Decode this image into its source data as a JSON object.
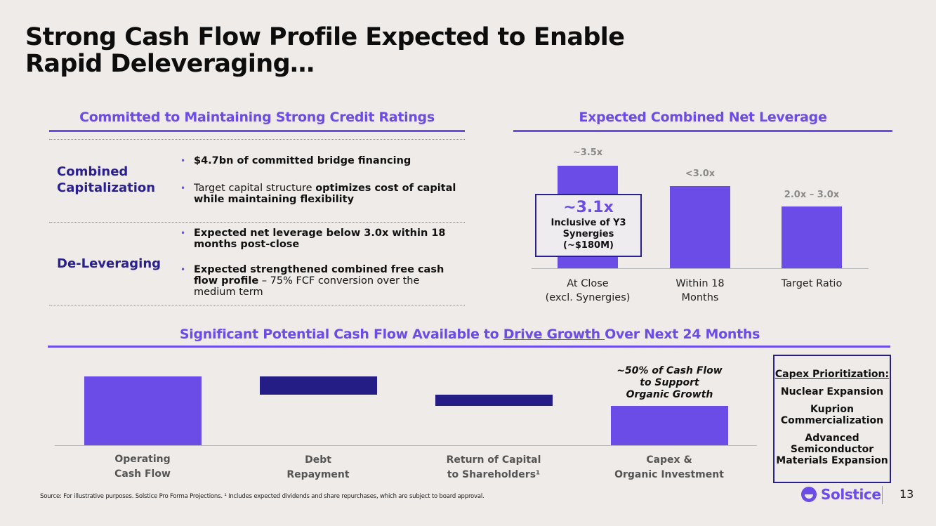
{
  "title": {
    "line1": "Strong Cash Flow Profile Expected to Enable",
    "line2": "Rapid Deleveraging…"
  },
  "credit": {
    "header": "Committed to Maintaining Strong Credit Ratings",
    "rows": [
      {
        "label_l1": "Combined",
        "label_l2": "Capitalization",
        "bullets": [
          {
            "bold": "$4.7bn of committed bridge financing",
            "plain": ""
          },
          {
            "pre": "Target capital structure ",
            "bold": "optimizes cost of capital while maintaining  flexibility"
          }
        ]
      },
      {
        "label_l1": "De-Leveraging",
        "bullets": [
          {
            "bold": "Expected net leverage below 3.0x within 18 months post-close"
          },
          {
            "bold": "Expected strengthened combined free cash flow profile",
            "plain": " – 75% FCF conversion over the medium term"
          }
        ]
      }
    ]
  },
  "leverage": {
    "header": "Expected Combined Net Leverage",
    "bars": [
      {
        "value_label": "~3.5x",
        "cat_l1": "At Close",
        "cat_l2": "(excl. Synergies)"
      },
      {
        "value_label": "<3.0x",
        "cat_l1": "Within 18",
        "cat_l2": "Months"
      },
      {
        "value_label": "2.0x – 3.0x",
        "cat_l1": "Target Ratio",
        "cat_l2": ""
      }
    ],
    "callout": {
      "big": "~3.1x",
      "l1": "Inclusive of Y3",
      "l2": "Synergies",
      "l3": "(~$180M)"
    }
  },
  "cashflow": {
    "header_pre": "Significant Potential Cash Flow Available to ",
    "header_underlined": "Drive Growth ",
    "header_post": "Over Next 24 Months",
    "bars": [
      {
        "cat_l1": "Operating",
        "cat_l2": "Cash Flow"
      },
      {
        "cat_l1": "Debt",
        "cat_l2": "Repayment"
      },
      {
        "cat_l1": "Return of Capital",
        "cat_l2": "to Shareholders¹"
      },
      {
        "cat_l1": "Capex &",
        "cat_l2": "Organic Investment"
      }
    ],
    "note": {
      "l1": "~50% of Cash Flow",
      "l2": "to Support",
      "l3": "Organic Growth"
    },
    "capex": {
      "head": "Capex Prioritization:",
      "items": [
        {
          "l1": "Nuclear Expansion"
        },
        {
          "l1": "Kuprion",
          "l2": "Commercialization"
        },
        {
          "l1": "Advanced",
          "l2": "Semiconductor",
          "l3": "Materials Expansion"
        }
      ]
    }
  },
  "chart_data": [
    {
      "type": "bar",
      "categories": [
        "At Close (excl. Synergies)",
        "Within 18 Months",
        "Target Ratio"
      ],
      "values": [
        3.5,
        3.0,
        2.5
      ],
      "labels": [
        "~3.5x",
        "<3.0x",
        "2.0x – 3.0x"
      ],
      "title": "Expected Combined Net Leverage",
      "annotation": "~3.1x Inclusive of Y3 Synergies (~$180M)"
    },
    {
      "type": "bar",
      "subtype": "waterfall",
      "categories": [
        "Operating Cash Flow",
        "Debt Repayment",
        "Return of Capital to Shareholders¹",
        "Capex & Organic Investment"
      ],
      "values": [
        100,
        -27,
        -9,
        50
      ],
      "title": "Significant Potential Cash Flow Available to Drive Growth Over Next 24 Months",
      "annotation": "~50% of Cash Flow to Support Organic Growth"
    }
  ],
  "footnote": "Source: For illustrative purposes. Solstice Pro Forma Projections. ¹ Includes expected dividends and share repurchases, which are subject to board approval.",
  "logo_text": "Solstice",
  "page_number": "13",
  "colors": {
    "accent": "#6c4ce6",
    "dark": "#241d86",
    "background": "#efebe8"
  }
}
